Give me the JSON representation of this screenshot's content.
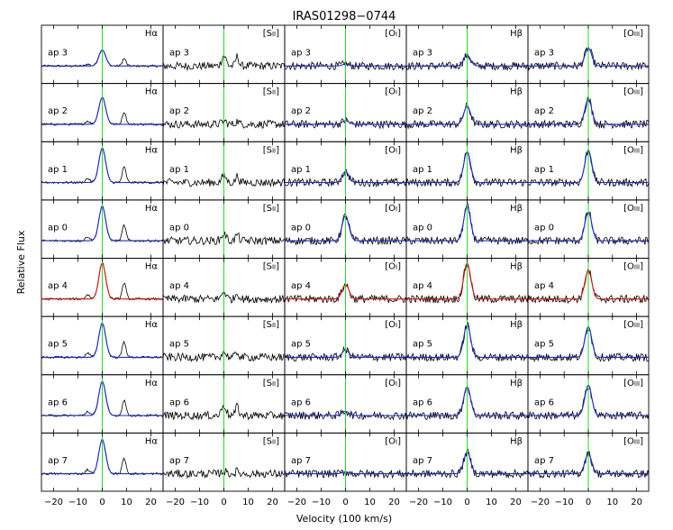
{
  "chart_data": {
    "type": "line",
    "title": "IRAS01298−0744",
    "xlabel": "Velocity (100 km/s)",
    "ylabel": "Relative Flux",
    "xlim": [
      -25,
      25
    ],
    "xticks": [
      -20,
      -10,
      0,
      10,
      20
    ],
    "xtick_labels": [
      "−20",
      "−10",
      "0",
      "10",
      "20"
    ],
    "grid": false,
    "legend": "none",
    "columns": [
      {
        "line": "Hα",
        "label_parts": [
          "H",
          "α"
        ]
      },
      {
        "line": "[SII]",
        "label_parts": [
          "[S",
          "II",
          "]"
        ]
      },
      {
        "line": "[OI]",
        "label_parts": [
          "[O",
          "I",
          "]"
        ]
      },
      {
        "line": "Hβ",
        "label_parts": [
          "H",
          "β"
        ]
      },
      {
        "line": "[OIII]",
        "label_parts": [
          "[O",
          "III",
          "]"
        ]
      }
    ],
    "rows": [
      "ap 3",
      "ap 2",
      "ap 1",
      "ap 0",
      "ap 4",
      "ap 5",
      "ap 6",
      "ap 7"
    ],
    "row_fit_colors": [
      "#1e2ad6",
      "#1e2ad6",
      "#1e2ad6",
      "#1e2ad6",
      "#dd1111",
      "#1e2ad6",
      "#1e2ad6",
      "#1e2ad6"
    ],
    "colors": {
      "spectrum": "#000000",
      "zero_velocity_line": "#22dd22",
      "fit_blue": "#1e2ad6",
      "fit_red": "#dd1111",
      "fit_cyan": "#22cccc"
    },
    "peak_velocity": 0,
    "peak_amplitude": [
      [
        0.45,
        0.3,
        0.05,
        0.3,
        0.5
      ],
      [
        0.75,
        0.1,
        0.1,
        0.5,
        0.7
      ],
      [
        0.95,
        0.2,
        0.3,
        0.85,
        0.9
      ],
      [
        0.95,
        0.2,
        0.7,
        0.95,
        0.8
      ],
      [
        1.0,
        0.2,
        0.4,
        1.0,
        0.8
      ],
      [
        0.95,
        0.15,
        0.2,
        0.9,
        0.85
      ],
      [
        0.95,
        0.3,
        0.12,
        0.8,
        0.85
      ],
      [
        0.95,
        0.08,
        0.05,
        0.6,
        0.55
      ]
    ]
  }
}
